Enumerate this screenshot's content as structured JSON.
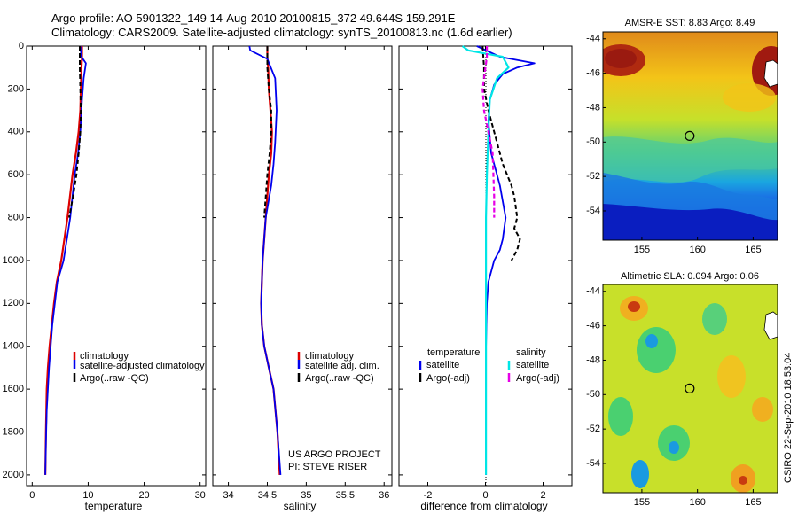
{
  "header": {
    "line1": "Argo profile: AO 5901322_149 14-Aug-2010 20100815_372 49.644S 159.291E",
    "line2": "Climatology: CARS2009. Satellite-adjusted climatology: synTS_20100813.nc (1.6d earlier)"
  },
  "credit": {
    "project": "US ARGO PROJECT",
    "pi": "PI: STEVE RISER",
    "stamp": "CSIRO 22-Sep-2010 18:53:04"
  },
  "colors": {
    "climatology": "#dd0000",
    "satellite": "#0000ee",
    "argo": "#000000",
    "sal_satellite": "#00e6e6",
    "sal_argo": "#e600e6"
  },
  "chart_data": [
    {
      "type": "line",
      "name": "temperature",
      "xlabel": "temperature",
      "ylabel": "",
      "xlim": [
        -1,
        31
      ],
      "ylim": [
        0,
        2050
      ],
      "xticks": [
        0,
        10,
        20,
        30
      ],
      "yticks": [
        0,
        200,
        400,
        600,
        800,
        1000,
        1200,
        1400,
        1600,
        1800,
        2000
      ],
      "legend": [
        "climatology",
        "satellite-adjusted climatology",
        "Argo(..raw -QC)"
      ],
      "series": [
        {
          "name": "climatology",
          "x": [
            8.9,
            8.9,
            8.8,
            8.7,
            8.6,
            8.3,
            7.8,
            7.2,
            6.3,
            5.2,
            4.4,
            3.9,
            3.5,
            3.1,
            2.8,
            2.6,
            2.45,
            2.35
          ],
          "y": [
            0,
            50,
            100,
            200,
            300,
            400,
            500,
            600,
            800,
            1000,
            1100,
            1200,
            1300,
            1400,
            1500,
            1600,
            1800,
            2000
          ]
        },
        {
          "name": "satellite-adjusted climatology",
          "x": [
            8.6,
            8.8,
            9.6,
            9.2,
            8.9,
            8.6,
            8.2,
            7.6,
            6.8,
            5.6,
            4.5,
            3.6,
            3.0,
            2.6,
            2.45,
            2.35
          ],
          "y": [
            0,
            50,
            80,
            150,
            250,
            400,
            500,
            600,
            800,
            1000,
            1100,
            1300,
            1500,
            1700,
            1850,
            2000
          ]
        },
        {
          "name": "Argo(..raw -QC)",
          "x": [
            8.5,
            8.5,
            8.5,
            8.6,
            8.7,
            8.6,
            8.3,
            7.9,
            7.3,
            6.6
          ],
          "y": [
            0,
            50,
            100,
            200,
            300,
            400,
            500,
            600,
            700,
            800
          ]
        }
      ]
    },
    {
      "type": "line",
      "name": "salinity",
      "xlabel": "salinity",
      "ylabel": "",
      "xlim": [
        33.8,
        36.1
      ],
      "ylim": [
        0,
        2050
      ],
      "xticks": [
        34,
        34.5,
        35,
        35.5,
        36
      ],
      "yticks": [
        0,
        200,
        400,
        600,
        800,
        1000,
        1200,
        1400,
        1600,
        1800,
        2000
      ],
      "legend": [
        "climatology",
        "satellite adj. clim.",
        "Argo(..raw -QC)"
      ],
      "series": [
        {
          "name": "climatology",
          "x": [
            34.5,
            34.5,
            34.51,
            34.52,
            34.54,
            34.56,
            34.55,
            34.52,
            34.48,
            34.44,
            34.42,
            34.43,
            34.46,
            34.52,
            34.58,
            34.63,
            34.66
          ],
          "y": [
            0,
            50,
            100,
            200,
            300,
            400,
            500,
            600,
            800,
            1000,
            1200,
            1300,
            1400,
            1500,
            1600,
            1800,
            2000
          ]
        },
        {
          "name": "satellite adj. clim.",
          "x": [
            34.27,
            34.28,
            34.5,
            34.6,
            34.62,
            34.6,
            34.58,
            34.55,
            34.48,
            34.44,
            34.42,
            34.43,
            34.46,
            34.52,
            34.58,
            34.63,
            34.67
          ],
          "y": [
            0,
            20,
            60,
            150,
            300,
            450,
            550,
            650,
            800,
            1000,
            1200,
            1300,
            1400,
            1500,
            1600,
            1800,
            2000
          ]
        },
        {
          "name": "Argo(..raw -QC)",
          "x": [
            34.5,
            34.5,
            34.5,
            34.52,
            34.55,
            34.55,
            34.53,
            34.5,
            34.46
          ],
          "y": [
            0,
            50,
            100,
            200,
            300,
            400,
            500,
            600,
            800
          ]
        }
      ]
    },
    {
      "type": "line",
      "name": "difference from climatology",
      "xlabel": "difference from climatology",
      "ylabel": "",
      "xlim": [
        -3,
        3
      ],
      "ylim": [
        0,
        2050
      ],
      "xticks": [
        -2,
        0,
        2
      ],
      "yticks": [
        0,
        200,
        400,
        600,
        800,
        1000,
        1200,
        1400,
        1600,
        1800,
        2000
      ],
      "legend_headers": [
        "temperature",
        "salinity"
      ],
      "legend": [
        "satellite",
        "Argo(-adj)",
        "satellite",
        "Argo(-adj)"
      ],
      "series": [
        {
          "name": "temperature satellite",
          "x": [
            -0.3,
            0.5,
            1.7,
            1.1,
            0.6,
            0.3,
            0.15,
            0.1,
            0.2,
            0.5,
            0.7,
            0.6,
            0.5,
            0.3,
            0.1,
            0.05,
            0.02,
            0.02,
            0.02
          ],
          "y": [
            0,
            50,
            80,
            100,
            130,
            180,
            250,
            350,
            500,
            650,
            800,
            900,
            950,
            1000,
            1100,
            1200,
            1400,
            1700,
            2000
          ]
        },
        {
          "name": "temperature Argo(-adj)",
          "x": [
            -0.1,
            -0.05,
            -0.05,
            0.1,
            0.3,
            0.5,
            0.6,
            0.9,
            1.0,
            1.1,
            1.0,
            1.2,
            1.1,
            0.9
          ],
          "y": [
            0,
            100,
            200,
            300,
            400,
            500,
            550,
            650,
            700,
            800,
            850,
            900,
            950,
            1000
          ]
        },
        {
          "name": "salinity satellite",
          "x": [
            -0.8,
            -0.6,
            0.6,
            0.8,
            0.4,
            0.15,
            0.1,
            0.05,
            0.02,
            0.02,
            0.02,
            0.02
          ],
          "y": [
            0,
            20,
            50,
            100,
            150,
            250,
            400,
            600,
            800,
            1200,
            1600,
            2000
          ]
        },
        {
          "name": "salinity Argo(-adj)",
          "x": [
            0.05,
            0.05,
            -0.1,
            -0.05,
            0.1,
            0.25,
            0.3,
            0.3
          ],
          "y": [
            0,
            50,
            200,
            300,
            400,
            500,
            700,
            800
          ]
        }
      ]
    },
    {
      "type": "heatmap",
      "name": "sst-map",
      "title": "AMSR-E SST: 8.83 Argo: 8.49",
      "xlim": [
        151.5,
        167.2
      ],
      "ylim": [
        -55.7,
        -43.6
      ],
      "xticks": [
        155,
        160,
        165
      ],
      "yticks": [
        -44,
        -46,
        -48,
        -50,
        -52,
        -54
      ],
      "marker": [
        159.291,
        -49.644
      ]
    },
    {
      "type": "heatmap",
      "name": "sla-map",
      "title": "Altimetric SLA: 0.094 Argo: 0.06",
      "xlim": [
        151.5,
        167.2
      ],
      "ylim": [
        -55.7,
        -43.6
      ],
      "xticks": [
        155,
        160,
        165
      ],
      "yticks": [
        -44,
        -46,
        -48,
        -50,
        -52,
        -54
      ],
      "marker": [
        159.291,
        -49.644
      ]
    }
  ]
}
